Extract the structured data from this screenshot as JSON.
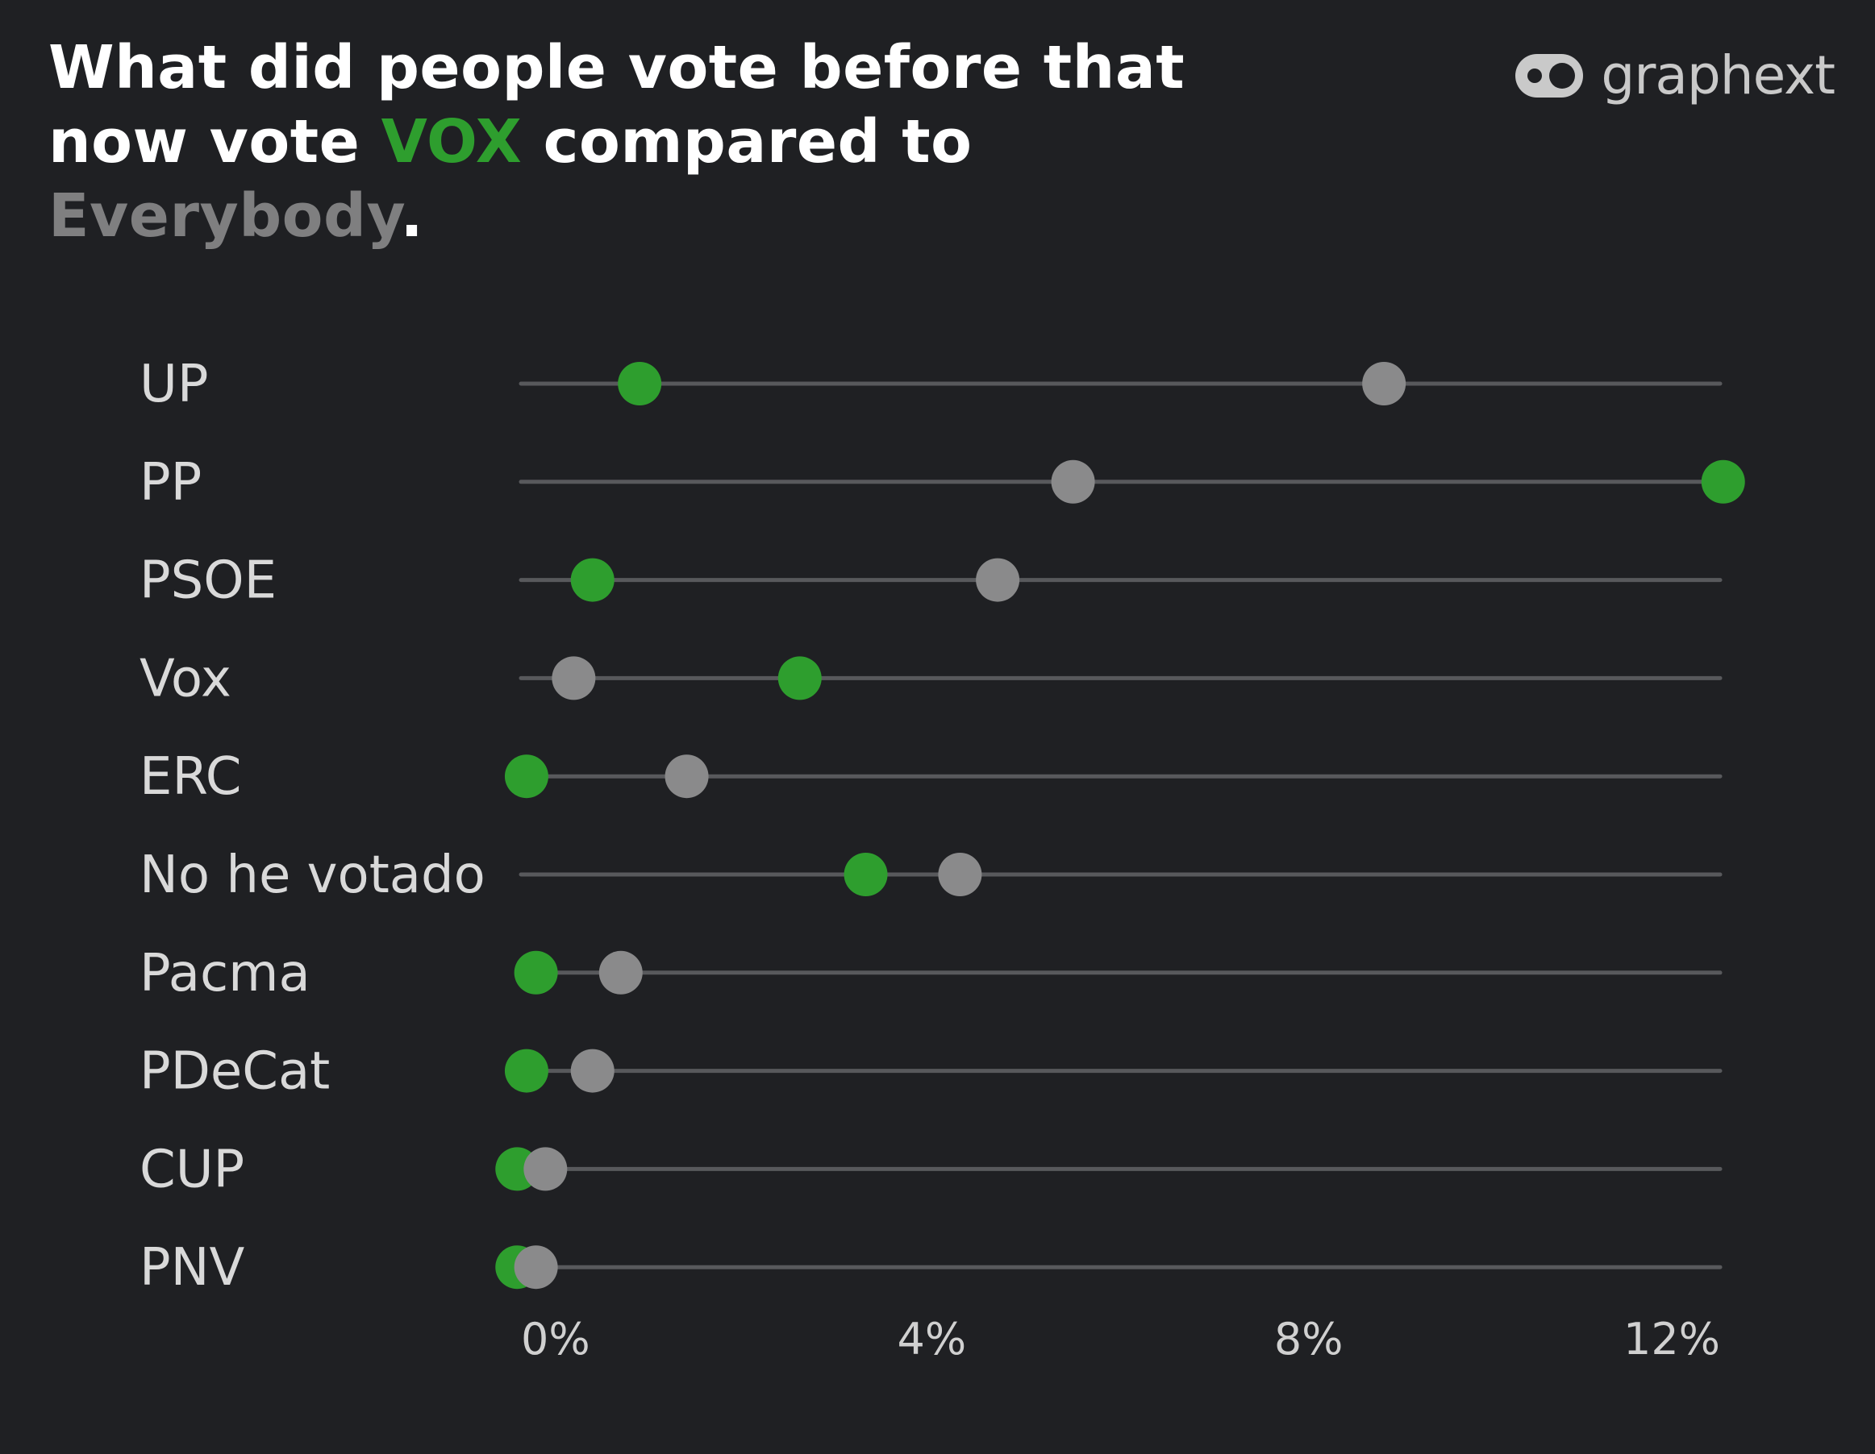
{
  "title": {
    "part1": "What did people vote before that now vote ",
    "highlight1": "VOX",
    "part2": " compared to ",
    "highlight2": "Everybody",
    "part3": "."
  },
  "logo": {
    "text": "graphext",
    "icon": "graphext-logo-icon"
  },
  "colors": {
    "background": "#1f2023",
    "vox": "#2e9e2e",
    "everybody": "#8a8a8b",
    "track": "#58595c"
  },
  "chart_data": {
    "type": "dot",
    "categories": [
      "UP",
      "PP",
      "PSOE",
      "Vox",
      "ERC",
      "No he votado",
      "Pacma",
      "PDeCat",
      "CUP",
      "PNV"
    ],
    "series": [
      {
        "name": "VOX",
        "values": [
          0.9,
          12.4,
          0.4,
          2.6,
          -0.3,
          3.3,
          -0.2,
          -0.3,
          -0.4,
          -0.4
        ]
      },
      {
        "name": "Everybody",
        "values": [
          8.8,
          5.5,
          4.7,
          0.2,
          1.4,
          4.3,
          0.7,
          0.4,
          -0.1,
          -0.2
        ]
      }
    ],
    "x_ticks": [
      0,
      4,
      8,
      12
    ],
    "x_tick_labels": [
      "0%",
      "4%",
      "8%",
      "12%"
    ],
    "xlim": [
      -0.3,
      12.3
    ],
    "grid": false
  }
}
